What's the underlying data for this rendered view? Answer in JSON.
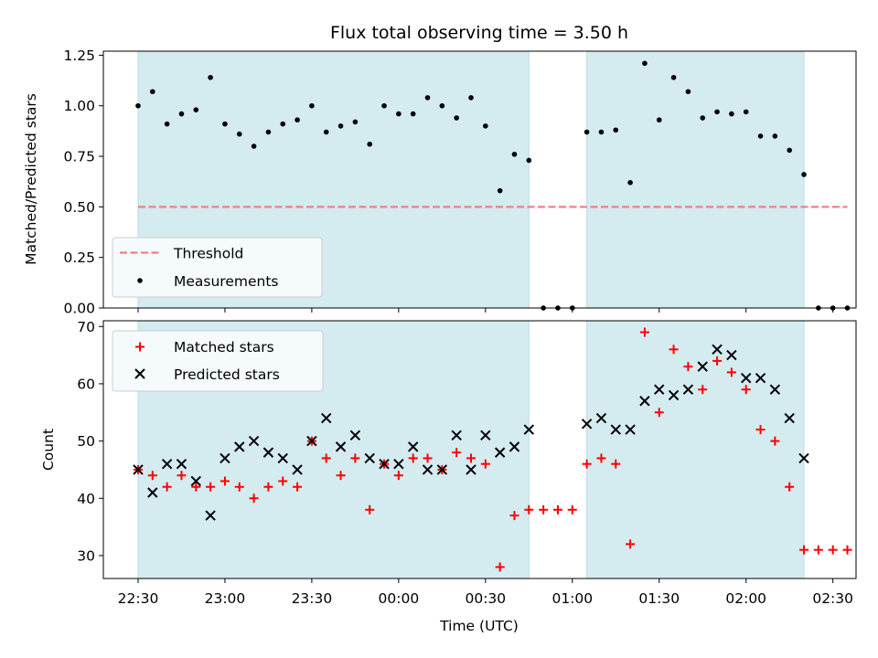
{
  "chart_data": {
    "title": "Flux total observing time = 3.50 h",
    "type": "scatter",
    "x_ticks": [
      "22:30",
      "23:00",
      "23:30",
      "00:00",
      "00:30",
      "01:00",
      "01:30",
      "02:00",
      "02:30"
    ],
    "xlabel": "Time (UTC)",
    "xlim": [
      "22:18",
      "02:38"
    ],
    "observing_windows": [
      {
        "start": "22:30",
        "end": "00:45"
      },
      {
        "start": "01:05",
        "end": "02:20"
      }
    ],
    "shade_color": "#d4ebf0",
    "panels": [
      {
        "ylabel": "Matched/Predicted stars",
        "ylim": [
          0,
          1.27
        ],
        "y_ticks": [
          "0.00",
          "0.25",
          "0.50",
          "0.75",
          "1.00",
          "1.25"
        ],
        "threshold": {
          "name": "Threshold",
          "value": 0.5,
          "xrange": [
            "22:30",
            "02:35"
          ],
          "color": "#f08080"
        },
        "legend_position": "lower-left",
        "series": [
          {
            "name": "Measurements",
            "marker": "dot",
            "color": "#000000",
            "points": [
              [
                "22:30",
                1.0
              ],
              [
                "22:35",
                1.07
              ],
              [
                "22:40",
                0.91
              ],
              [
                "22:45",
                0.96
              ],
              [
                "22:50",
                0.98
              ],
              [
                "22:55",
                1.14
              ],
              [
                "23:00",
                0.91
              ],
              [
                "23:05",
                0.86
              ],
              [
                "23:10",
                0.8
              ],
              [
                "23:15",
                0.87
              ],
              [
                "23:20",
                0.91
              ],
              [
                "23:25",
                0.93
              ],
              [
                "23:30",
                1.0
              ],
              [
                "23:35",
                0.87
              ],
              [
                "23:40",
                0.9
              ],
              [
                "23:45",
                0.92
              ],
              [
                "23:50",
                0.81
              ],
              [
                "23:55",
                1.0
              ],
              [
                "00:00",
                0.96
              ],
              [
                "00:05",
                0.96
              ],
              [
                "00:10",
                1.04
              ],
              [
                "00:15",
                1.0
              ],
              [
                "00:20",
                0.94
              ],
              [
                "00:25",
                1.04
              ],
              [
                "00:30",
                0.9
              ],
              [
                "00:35",
                0.58
              ],
              [
                "00:40",
                0.76
              ],
              [
                "00:45",
                0.73
              ],
              [
                "00:50",
                0.0
              ],
              [
                "00:55",
                0.0
              ],
              [
                "01:00",
                0.0
              ],
              [
                "01:05",
                0.87
              ],
              [
                "01:10",
                0.87
              ],
              [
                "01:15",
                0.88
              ],
              [
                "01:20",
                0.62
              ],
              [
                "01:25",
                1.21
              ],
              [
                "01:30",
                0.93
              ],
              [
                "01:35",
                1.14
              ],
              [
                "01:40",
                1.07
              ],
              [
                "01:45",
                0.94
              ],
              [
                "01:50",
                0.97
              ],
              [
                "01:55",
                0.96
              ],
              [
                "02:00",
                0.97
              ],
              [
                "02:05",
                0.85
              ],
              [
                "02:10",
                0.85
              ],
              [
                "02:15",
                0.78
              ],
              [
                "02:20",
                0.66
              ],
              [
                "02:25",
                0.0
              ],
              [
                "02:30",
                0.0
              ],
              [
                "02:35",
                0.0
              ]
            ]
          }
        ]
      },
      {
        "ylabel": "Count",
        "ylim": [
          26,
          71
        ],
        "y_ticks": [
          "30",
          "40",
          "50",
          "60",
          "70"
        ],
        "legend_position": "upper-left",
        "series": [
          {
            "name": "Matched stars",
            "marker": "plus",
            "color": "#ff0000",
            "points": [
              [
                "22:30",
                45
              ],
              [
                "22:35",
                44
              ],
              [
                "22:40",
                42
              ],
              [
                "22:45",
                44
              ],
              [
                "22:50",
                42
              ],
              [
                "22:55",
                42
              ],
              [
                "23:00",
                43
              ],
              [
                "23:05",
                42
              ],
              [
                "23:10",
                40
              ],
              [
                "23:15",
                42
              ],
              [
                "23:20",
                43
              ],
              [
                "23:25",
                42
              ],
              [
                "23:30",
                50
              ],
              [
                "23:35",
                47
              ],
              [
                "23:40",
                44
              ],
              [
                "23:45",
                47
              ],
              [
                "23:50",
                38
              ],
              [
                "23:55",
                46
              ],
              [
                "00:00",
                44
              ],
              [
                "00:05",
                47
              ],
              [
                "00:10",
                47
              ],
              [
                "00:15",
                45
              ],
              [
                "00:20",
                48
              ],
              [
                "00:25",
                47
              ],
              [
                "00:30",
                46
              ],
              [
                "00:35",
                28
              ],
              [
                "00:40",
                37
              ],
              [
                "00:45",
                38
              ],
              [
                "00:50",
                38
              ],
              [
                "00:55",
                38
              ],
              [
                "01:00",
                38
              ],
              [
                "01:05",
                46
              ],
              [
                "01:10",
                47
              ],
              [
                "01:15",
                46
              ],
              [
                "01:20",
                32
              ],
              [
                "01:25",
                69
              ],
              [
                "01:30",
                55
              ],
              [
                "01:35",
                66
              ],
              [
                "01:40",
                63
              ],
              [
                "01:45",
                59
              ],
              [
                "01:50",
                64
              ],
              [
                "01:55",
                62
              ],
              [
                "02:00",
                59
              ],
              [
                "02:05",
                52
              ],
              [
                "02:10",
                50
              ],
              [
                "02:15",
                42
              ],
              [
                "02:20",
                31
              ],
              [
                "02:25",
                31
              ],
              [
                "02:30",
                31
              ],
              [
                "02:35",
                31
              ]
            ]
          },
          {
            "name": "Predicted stars",
            "marker": "x",
            "color": "#000000",
            "points": [
              [
                "22:30",
                45
              ],
              [
                "22:35",
                41
              ],
              [
                "22:40",
                46
              ],
              [
                "22:45",
                46
              ],
              [
                "22:50",
                43
              ],
              [
                "22:55",
                37
              ],
              [
                "23:00",
                47
              ],
              [
                "23:05",
                49
              ],
              [
                "23:10",
                50
              ],
              [
                "23:15",
                48
              ],
              [
                "23:20",
                47
              ],
              [
                "23:25",
                45
              ],
              [
                "23:30",
                50
              ],
              [
                "23:35",
                54
              ],
              [
                "23:40",
                49
              ],
              [
                "23:45",
                51
              ],
              [
                "23:50",
                47
              ],
              [
                "23:55",
                46
              ],
              [
                "00:00",
                46
              ],
              [
                "00:05",
                49
              ],
              [
                "00:10",
                45
              ],
              [
                "00:15",
                45
              ],
              [
                "00:20",
                51
              ],
              [
                "00:25",
                45
              ],
              [
                "00:30",
                51
              ],
              [
                "00:35",
                48
              ],
              [
                "00:40",
                49
              ],
              [
                "00:45",
                52
              ],
              [
                "01:05",
                53
              ],
              [
                "01:10",
                54
              ],
              [
                "01:15",
                52
              ],
              [
                "01:20",
                52
              ],
              [
                "01:25",
                57
              ],
              [
                "01:30",
                59
              ],
              [
                "01:35",
                58
              ],
              [
                "01:40",
                59
              ],
              [
                "01:45",
                63
              ],
              [
                "01:50",
                66
              ],
              [
                "01:55",
                65
              ],
              [
                "02:00",
                61
              ],
              [
                "02:05",
                61
              ],
              [
                "02:10",
                59
              ],
              [
                "02:15",
                54
              ],
              [
                "02:20",
                47
              ]
            ]
          }
        ]
      }
    ]
  }
}
